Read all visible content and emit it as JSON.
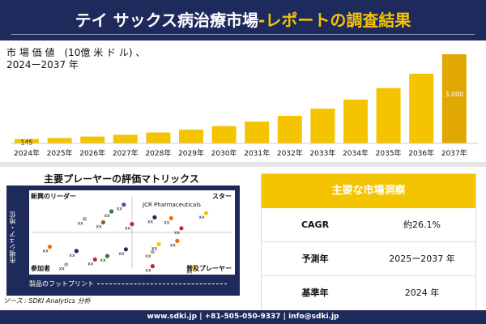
{
  "header": {
    "title_main": "テイ サックス病治療市場",
    "title_sep": "-",
    "title_sub": "レポートの調査結果"
  },
  "market_label": {
    "line1": "市 場 価 値　(10億 米 ド ル) 、",
    "line2": "2024ー2037 年"
  },
  "colors": {
    "navy": "#1f2a5c",
    "bar": "#f5c400",
    "bar_highlight": "#e0a800"
  },
  "chart_data": [
    {
      "type": "bar",
      "title": "",
      "categories": [
        "2024年",
        "2025年",
        "2026年",
        "2027年",
        "2028年",
        "2029年",
        "2030年",
        "2031年",
        "2032年",
        "2033年",
        "2034年",
        "2035年",
        "2036年",
        "2037年"
      ],
      "values": [
        145,
        182,
        230,
        290,
        366,
        462,
        583,
        735,
        927,
        1169,
        1475,
        1860,
        2346,
        3000
      ],
      "data_labels": {
        "0": "145",
        "13": "3,000"
      },
      "ylim": [
        0,
        3000
      ],
      "grid": false,
      "legend": "none"
    },
    {
      "type": "scatter",
      "title": "主要プレーヤーの評価マトリックス",
      "xlabel": "製品のフットプリント",
      "ylabel": "市場シェア・地位",
      "quadrant_labels": {
        "top_left": "新興のリーダー",
        "top_right": "スター",
        "bottom_left": "参加者",
        "bottom_right": "普及プレーヤー"
      },
      "annotation": "JCR Pharmaceuticals",
      "point_label": "xx",
      "points": [
        {
          "x": 0.27,
          "y": 0.66,
          "color": "#b0b0b0"
        },
        {
          "x": 0.36,
          "y": 0.62,
          "color": "#7a6a2a"
        },
        {
          "x": 0.4,
          "y": 0.75,
          "color": "#2e7d32"
        },
        {
          "x": 0.46,
          "y": 0.83,
          "color": "#6a3d9a"
        },
        {
          "x": 0.5,
          "y": 0.6,
          "color": "#c62828"
        },
        {
          "x": 0.61,
          "y": 0.68,
          "color": "#1f2a5c"
        },
        {
          "x": 0.69,
          "y": 0.67,
          "color": "#ef6c00"
        },
        {
          "x": 0.74,
          "y": 0.55,
          "color": "#c62828"
        },
        {
          "x": 0.86,
          "y": 0.73,
          "color": "#f5c400"
        },
        {
          "x": 0.1,
          "y": 0.33,
          "color": "#ef6c00"
        },
        {
          "x": 0.23,
          "y": 0.28,
          "color": "#1f2a5c"
        },
        {
          "x": 0.38,
          "y": 0.22,
          "color": "#2e7d32"
        },
        {
          "x": 0.32,
          "y": 0.18,
          "color": "#c62828"
        },
        {
          "x": 0.47,
          "y": 0.3,
          "color": "#1f2a5c"
        },
        {
          "x": 0.6,
          "y": 0.27,
          "color": "#b0b0b0"
        },
        {
          "x": 0.63,
          "y": 0.36,
          "color": "#f5c400"
        },
        {
          "x": 0.72,
          "y": 0.4,
          "color": "#ef6c00"
        },
        {
          "x": 0.8,
          "y": 0.08,
          "color": "#f5c400"
        },
        {
          "x": 0.6,
          "y": 0.1,
          "color": "#c62828"
        },
        {
          "x": 0.18,
          "y": 0.12,
          "color": "#b0b0b0"
        }
      ]
    }
  ],
  "key_findings": {
    "title": "主要な市場洞察",
    "rows": [
      {
        "key": "CAGR",
        "value": "約26.1%"
      },
      {
        "key": "予測年",
        "value": "2025ー2037 年"
      },
      {
        "key": "基準年",
        "value": "2024 年"
      }
    ]
  },
  "source": "ソース : SDKI Analytics 分析",
  "footer": "www.sdki.jp | +81-505-050-9337 | info@sdki.jp"
}
